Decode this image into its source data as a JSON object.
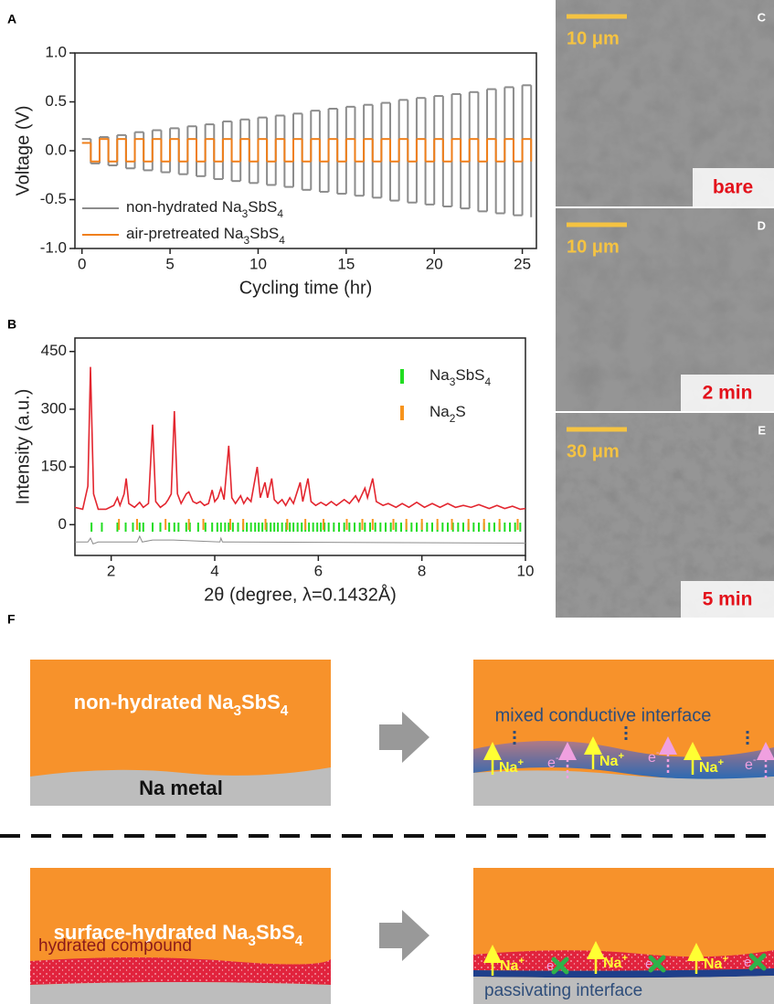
{
  "chart_data": [
    {
      "type": "line",
      "panel": "A",
      "step": true,
      "xlabel": "Cycling time (hr)",
      "ylabel": "Voltage (V)",
      "x": [
        0,
        0.5,
        1,
        1.5,
        2,
        2.5,
        3,
        3.5,
        4,
        4.5,
        5,
        5.5,
        6,
        6.5,
        7,
        7.5,
        8,
        8.5,
        9,
        9.5,
        10,
        10.5,
        11,
        11.5,
        12,
        12.5,
        13,
        13.5,
        14,
        14.5,
        15,
        15.5,
        16,
        16.5,
        17,
        17.5,
        18,
        18.5,
        19,
        19.5,
        20,
        20.5,
        21,
        21.5,
        22,
        22.5,
        23,
        23.5,
        24,
        24.5,
        25,
        25.5
      ],
      "series": [
        {
          "name": "non-hydrated Na3SbS4",
          "color": "#8c8c8c",
          "values": [
            0.12,
            -0.13,
            0.14,
            -0.15,
            0.16,
            -0.18,
            0.19,
            -0.2,
            0.21,
            -0.22,
            0.23,
            -0.24,
            0.25,
            -0.26,
            0.27,
            -0.29,
            0.3,
            -0.31,
            0.32,
            -0.33,
            0.34,
            -0.35,
            0.36,
            -0.37,
            0.38,
            -0.4,
            0.41,
            -0.42,
            0.43,
            -0.44,
            0.45,
            -0.46,
            0.47,
            -0.48,
            0.49,
            -0.51,
            0.52,
            -0.53,
            0.54,
            -0.55,
            0.56,
            -0.57,
            0.58,
            -0.59,
            0.6,
            -0.62,
            0.63,
            -0.64,
            0.65,
            -0.66,
            0.67,
            -0.68
          ]
        },
        {
          "name": "air-pretreated Na3SbS4",
          "color": "#f07f1a",
          "values": [
            0.08,
            -0.11,
            0.12,
            -0.11,
            0.12,
            -0.11,
            0.12,
            -0.11,
            0.12,
            -0.11,
            0.12,
            -0.11,
            0.12,
            -0.11,
            0.12,
            -0.11,
            0.12,
            -0.11,
            0.12,
            -0.11,
            0.12,
            -0.11,
            0.12,
            -0.11,
            0.12,
            -0.11,
            0.12,
            -0.11,
            0.12,
            -0.11,
            0.12,
            -0.11,
            0.12,
            -0.11,
            0.12,
            -0.11,
            0.12,
            -0.11,
            0.12,
            -0.11,
            0.12,
            -0.11,
            0.12,
            -0.11,
            0.12,
            -0.11,
            0.12,
            -0.11,
            0.12,
            -0.11,
            0.12,
            -0.11
          ]
        }
      ],
      "xlim": [
        -0.4,
        25.8
      ],
      "ylim": [
        -1,
        1
      ],
      "xticks": [
        0,
        5,
        10,
        15,
        20,
        25
      ],
      "yticks": [
        {
          "value": -1,
          "label": "-1.0"
        },
        -0.5,
        {
          "value": 0,
          "label": "0.0"
        },
        0.5,
        {
          "value": 1,
          "label": "1.0"
        }
      ],
      "legend": "lower left"
    },
    {
      "type": "line",
      "panel": "B",
      "step": false,
      "xlabel": "2θ (degree, λ=0.1432Å)",
      "ylabel": "Intensity (a.u.)",
      "series": [
        {
          "color": "#e3262f",
          "x": [
            1.3,
            1.45,
            1.55,
            1.6,
            1.66,
            1.75,
            1.9,
            2.05,
            2.12,
            2.17,
            2.25,
            2.29,
            2.34,
            2.45,
            2.55,
            2.62,
            2.72,
            2.8,
            2.86,
            2.95,
            3.05,
            3.1,
            3.16,
            3.22,
            3.28,
            3.35,
            3.45,
            3.5,
            3.58,
            3.65,
            3.72,
            3.8,
            3.88,
            3.95,
            4.0,
            4.06,
            4.12,
            4.18,
            4.27,
            4.33,
            4.4,
            4.5,
            4.56,
            4.63,
            4.7,
            4.82,
            4.88,
            4.97,
            5.02,
            5.1,
            5.15,
            5.22,
            5.3,
            5.37,
            5.45,
            5.52,
            5.65,
            5.7,
            5.8,
            5.86,
            5.95,
            6.05,
            6.15,
            6.25,
            6.35,
            6.5,
            6.6,
            6.72,
            6.78,
            6.9,
            6.95,
            7.05,
            7.12,
            7.25,
            7.35,
            7.5,
            7.62,
            7.75,
            7.9,
            8.05,
            8.2,
            8.35,
            8.5,
            8.65,
            8.8,
            8.95,
            9.1,
            9.3,
            9.45,
            9.6,
            9.75,
            9.9,
            10
          ],
          "values": [
            45,
            40,
            100,
            410,
            80,
            40,
            40,
            50,
            70,
            50,
            80,
            120,
            55,
            45,
            58,
            45,
            55,
            260,
            60,
            45,
            55,
            65,
            80,
            295,
            80,
            55,
            80,
            85,
            60,
            55,
            60,
            50,
            55,
            90,
            60,
            70,
            95,
            65,
            205,
            70,
            55,
            75,
            55,
            70,
            60,
            150,
            70,
            110,
            70,
            120,
            65,
            55,
            65,
            50,
            70,
            55,
            110,
            60,
            120,
            60,
            50,
            58,
            50,
            60,
            50,
            65,
            55,
            75,
            60,
            95,
            70,
            120,
            60,
            50,
            55,
            45,
            55,
            45,
            58,
            45,
            55,
            45,
            55,
            45,
            50,
            45,
            52,
            42,
            50,
            42,
            48,
            40,
            42
          ]
        },
        {
          "color": "#8c8c8c",
          "x": [
            1.3,
            1.55,
            1.6,
            1.65,
            1.75,
            2.5,
            2.55,
            2.6,
            2.8,
            3.2,
            4.1,
            4.12,
            4.15,
            10
          ],
          "values": [
            -45,
            -45,
            -35,
            -50,
            -45,
            -45,
            -30,
            -45,
            -40,
            -40,
            -45,
            -35,
            -45,
            -48
          ]
        }
      ],
      "reflections": [
        {
          "name": "Na3SbS4",
          "color": "#22dd22",
          "x": [
            1.62,
            1.82,
            2.12,
            2.28,
            2.42,
            2.55,
            2.62,
            2.8,
            2.95,
            3.12,
            3.22,
            3.3,
            3.45,
            3.52,
            3.68,
            3.82,
            3.95,
            4.05,
            4.12,
            4.2,
            4.27,
            4.35,
            4.45,
            4.55,
            4.62,
            4.7,
            4.78,
            4.85,
            4.92,
            5.0,
            5.08,
            5.15,
            5.22,
            5.3,
            5.38,
            5.45,
            5.52,
            5.6,
            5.68,
            5.75,
            5.82,
            5.9,
            5.98,
            6.05,
            6.12,
            6.2,
            6.3,
            6.4,
            6.5,
            6.6,
            6.7,
            6.8,
            6.9,
            7.0,
            7.1,
            7.2,
            7.3,
            7.4,
            7.5,
            7.6,
            7.7,
            7.8,
            7.9,
            8.0,
            8.1,
            8.2,
            8.3,
            8.4,
            8.5,
            8.6,
            8.7,
            8.8,
            8.9,
            9.0,
            9.1,
            9.2,
            9.3,
            9.4,
            9.5,
            9.6,
            9.7,
            9.8,
            9.9
          ]
        },
        {
          "name": "Na2S",
          "color": "#f7941d",
          "x": [
            2.15,
            2.5,
            3.05,
            3.5,
            3.78,
            4.3,
            4.55,
            4.98,
            5.4,
            5.75,
            6.1,
            6.55,
            6.85,
            7.05,
            7.45,
            7.7,
            8.0,
            8.3,
            8.58,
            8.9,
            9.2,
            9.5,
            9.85
          ]
        }
      ],
      "xlim": [
        1.3,
        10
      ],
      "ylim": [
        -80,
        485
      ],
      "xticks": [
        2,
        4,
        6,
        8,
        10
      ],
      "yticks": [
        0,
        150,
        300,
        450
      ],
      "legend": "upper right"
    }
  ],
  "images": [
    {
      "panel": "C",
      "scale": "10 μm",
      "label": "bare"
    },
    {
      "panel": "D",
      "scale": "10 μm",
      "label": "2 min"
    },
    {
      "panel": "E",
      "scale": "30 μm",
      "label": "5 min"
    }
  ],
  "schematic": {
    "panel": "F",
    "top": {
      "material": "non-hydrated Na3SbS4",
      "metal": "Na metal",
      "interface": "mixed conductive interface",
      "ions": [
        "Na+",
        "Na+",
        "Na+"
      ],
      "electrons": [
        "e-",
        "e-",
        "e-"
      ]
    },
    "bottom": {
      "material": "surface-hydrated Na3SbS4",
      "layer": "hydrated compound",
      "interface": "passivating interface",
      "ions": [
        "Na+",
        "Na+",
        "Na+"
      ],
      "electrons": [
        "e-",
        "e-",
        "e-"
      ]
    }
  }
}
